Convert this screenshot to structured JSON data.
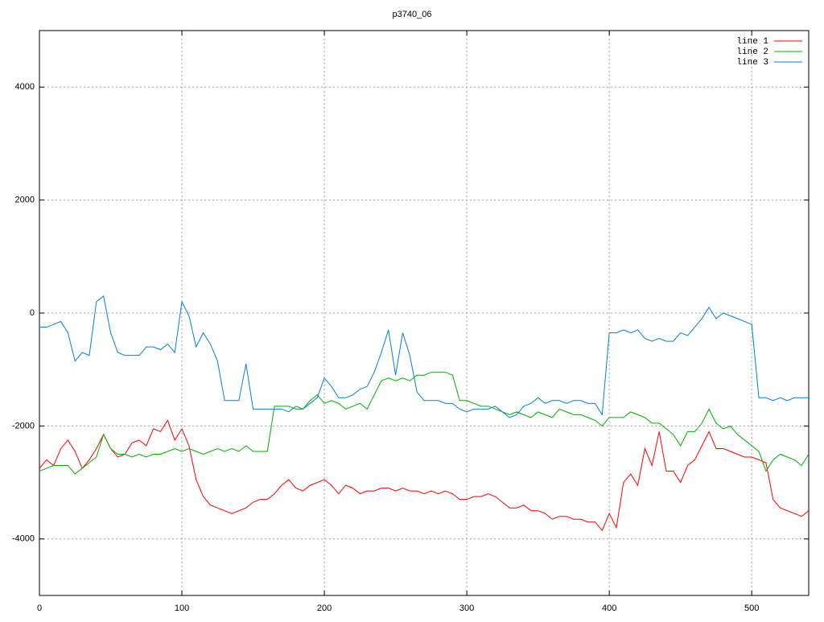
{
  "chart_data": {
    "type": "line",
    "title": "p3740_06",
    "x": [
      0,
      5,
      10,
      15,
      20,
      25,
      30,
      35,
      40,
      45,
      50,
      55,
      60,
      65,
      70,
      75,
      80,
      85,
      90,
      95,
      100,
      105,
      110,
      115,
      120,
      125,
      130,
      135,
      140,
      145,
      150,
      155,
      160,
      165,
      170,
      175,
      180,
      185,
      190,
      195,
      200,
      205,
      210,
      215,
      220,
      225,
      230,
      235,
      240,
      245,
      250,
      255,
      260,
      265,
      270,
      275,
      280,
      285,
      290,
      295,
      300,
      305,
      310,
      315,
      320,
      325,
      330,
      335,
      340,
      345,
      350,
      355,
      360,
      365,
      370,
      375,
      380,
      385,
      390,
      395,
      400,
      405,
      410,
      415,
      420,
      425,
      430,
      435,
      440,
      445,
      450,
      455,
      460,
      465,
      470,
      475,
      480,
      485,
      490,
      495,
      500,
      505,
      510,
      515,
      520,
      525,
      530,
      535,
      540
    ],
    "series": [
      {
        "name": "line 1",
        "color": "#ff0000",
        "values": [
          -2750,
          -2600,
          -2700,
          -2400,
          -2250,
          -2450,
          -2750,
          -2600,
          -2400,
          -2150,
          -2400,
          -2550,
          -2500,
          -2300,
          -2250,
          -2350,
          -2050,
          -2100,
          -1900,
          -2250,
          -2050,
          -2350,
          -2950,
          -3250,
          -3400,
          -3450,
          -3500,
          -3550,
          -3500,
          -3450,
          -3350,
          -3300,
          -3300,
          -3200,
          -3050,
          -2950,
          -3100,
          -3150,
          -3050,
          -3000,
          -2950,
          -3050,
          -3200,
          -3050,
          -3100,
          -3200,
          -3150,
          -3150,
          -3100,
          -3100,
          -3150,
          -3100,
          -3150,
          -3150,
          -3200,
          -3150,
          -3200,
          -3150,
          -3200,
          -3300,
          -3300,
          -3250,
          -3250,
          -3200,
          -3250,
          -3350,
          -3450,
          -3450,
          -3400,
          -3500,
          -3500,
          -3550,
          -3650,
          -3600,
          -3600,
          -3650,
          -3650,
          -3700,
          -3700,
          -3850,
          -3550,
          -3800,
          -3000,
          -2850,
          -3050,
          -2400,
          -2700,
          -2100,
          -2800,
          -2800,
          -3000,
          -2700,
          -2600,
          -2350,
          -2100,
          -2400,
          -2400,
          -2450,
          -2500,
          -2550,
          -2550,
          -2600,
          -2650,
          -3300,
          -3450,
          -3500,
          -3550,
          -3600,
          -3500
        ]
      },
      {
        "name": "line 2",
        "color": "#00b000",
        "values": [
          -2800,
          -2750,
          -2700,
          -2700,
          -2700,
          -2850,
          -2750,
          -2650,
          -2550,
          -2150,
          -2400,
          -2500,
          -2500,
          -2550,
          -2500,
          -2550,
          -2500,
          -2500,
          -2450,
          -2400,
          -2450,
          -2400,
          -2450,
          -2500,
          -2450,
          -2400,
          -2450,
          -2400,
          -2450,
          -2350,
          -2450,
          -2450,
          -2450,
          -1650,
          -1650,
          -1650,
          -1700,
          -1700,
          -1550,
          -1450,
          -1600,
          -1550,
          -1600,
          -1700,
          -1650,
          -1600,
          -1700,
          -1450,
          -1200,
          -1150,
          -1200,
          -1150,
          -1200,
          -1100,
          -1100,
          -1050,
          -1050,
          -1050,
          -1100,
          -1550,
          -1550,
          -1600,
          -1650,
          -1650,
          -1700,
          -1750,
          -1800,
          -1750,
          -1800,
          -1850,
          -1750,
          -1800,
          -1850,
          -1700,
          -1750,
          -1800,
          -1800,
          -1850,
          -1900,
          -2000,
          -1850,
          -1850,
          -1850,
          -1750,
          -1800,
          -1850,
          -1950,
          -1950,
          -2050,
          -2150,
          -2350,
          -2100,
          -2100,
          -1950,
          -1700,
          -1950,
          -2050,
          -2000,
          -2150,
          -2250,
          -2350,
          -2450,
          -2800,
          -2600,
          -2500,
          -2550,
          -2600,
          -2700,
          -2500
        ]
      },
      {
        "name": "line 3",
        "color": "#0080e0",
        "values": [
          -250,
          -250,
          -200,
          -150,
          -350,
          -850,
          -700,
          -750,
          200,
          300,
          -350,
          -700,
          -750,
          -750,
          -750,
          -600,
          -600,
          -650,
          -550,
          -700,
          200,
          -50,
          -600,
          -350,
          -550,
          -850,
          -1550,
          -1550,
          -1550,
          -900,
          -1700,
          -1700,
          -1700,
          -1700,
          -1700,
          -1750,
          -1650,
          -1700,
          -1600,
          -1500,
          -1150,
          -1300,
          -1500,
          -1500,
          -1450,
          -1350,
          -1300,
          -1050,
          -700,
          -300,
          -1100,
          -350,
          -750,
          -1400,
          -1550,
          -1550,
          -1550,
          -1600,
          -1600,
          -1700,
          -1750,
          -1700,
          -1700,
          -1700,
          -1650,
          -1750,
          -1850,
          -1800,
          -1650,
          -1600,
          -1500,
          -1600,
          -1550,
          -1550,
          -1600,
          -1550,
          -1550,
          -1600,
          -1600,
          -1800,
          -350,
          -350,
          -300,
          -350,
          -300,
          -450,
          -500,
          -450,
          -500,
          -500,
          -350,
          -400,
          -250,
          -100,
          100,
          -100,
          0,
          -50,
          -100,
          -150,
          -200,
          -1500,
          -1500,
          -1550,
          -1500,
          -1550,
          -1500,
          -1500,
          -1500
        ]
      }
    ],
    "xlim": [
      0,
      540
    ],
    "ylim": [
      -5000,
      5000
    ],
    "xticks": [
      0,
      100,
      200,
      300,
      400,
      500
    ],
    "yticks": [
      -4000,
      -2000,
      0,
      2000,
      4000
    ],
    "grid": true,
    "legend": "top-right"
  }
}
